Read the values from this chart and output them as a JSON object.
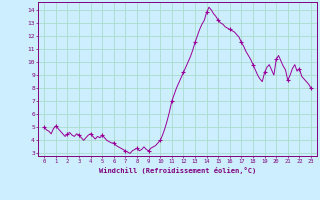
{
  "xlabel": "Windchill (Refroidissement éolien,°C)",
  "bg_color": "#cceeff",
  "grid_color": "#aaddcc",
  "line_color": "#990099",
  "marker_color": "#990099",
  "xlim": [
    -0.5,
    23.5
  ],
  "ylim": [
    2.8,
    14.6
  ],
  "yticks": [
    3,
    4,
    5,
    6,
    7,
    8,
    9,
    10,
    11,
    12,
    13,
    14
  ],
  "xticks": [
    0,
    1,
    2,
    3,
    4,
    5,
    6,
    7,
    8,
    9,
    10,
    11,
    12,
    13,
    14,
    15,
    16,
    17,
    18,
    19,
    20,
    21,
    22,
    23
  ],
  "x": [
    0,
    0.2,
    0.4,
    0.6,
    0.8,
    1.0,
    1.2,
    1.4,
    1.6,
    1.8,
    2.0,
    2.2,
    2.4,
    2.6,
    2.8,
    3.0,
    3.2,
    3.4,
    3.6,
    3.8,
    4.0,
    4.2,
    4.4,
    4.6,
    4.8,
    5.0,
    5.2,
    5.4,
    5.6,
    5.8,
    6.0,
    6.2,
    6.4,
    6.6,
    6.8,
    7.0,
    7.2,
    7.4,
    7.6,
    7.8,
    8.0,
    8.2,
    8.4,
    8.6,
    8.8,
    9.0,
    9.2,
    9.4,
    9.6,
    9.8,
    10.0,
    10.2,
    10.4,
    10.6,
    10.8,
    11.0,
    11.2,
    11.4,
    11.6,
    11.8,
    12.0,
    12.2,
    12.4,
    12.6,
    12.8,
    13.0,
    13.2,
    13.4,
    13.6,
    13.8,
    14.0,
    14.2,
    14.4,
    14.6,
    14.8,
    15.0,
    15.2,
    15.4,
    15.6,
    15.8,
    16.0,
    16.2,
    16.4,
    16.6,
    16.8,
    17.0,
    17.2,
    17.4,
    17.6,
    17.8,
    18.0,
    18.2,
    18.4,
    18.6,
    18.8,
    19.0,
    19.2,
    19.4,
    19.6,
    19.8,
    20.0,
    20.2,
    20.4,
    20.6,
    20.8,
    21.0,
    21.2,
    21.4,
    21.6,
    21.8,
    22.0,
    22.2,
    22.4,
    22.6,
    22.8,
    23.0
  ],
  "y": [
    5.0,
    4.8,
    4.7,
    4.5,
    4.9,
    5.1,
    4.9,
    4.7,
    4.5,
    4.3,
    4.5,
    4.6,
    4.4,
    4.3,
    4.5,
    4.4,
    4.2,
    4.0,
    4.2,
    4.4,
    4.5,
    4.3,
    4.1,
    4.3,
    4.2,
    4.4,
    4.2,
    4.0,
    3.9,
    3.8,
    3.8,
    3.6,
    3.5,
    3.4,
    3.3,
    3.2,
    3.1,
    3.0,
    3.2,
    3.3,
    3.4,
    3.2,
    3.3,
    3.5,
    3.3,
    3.2,
    3.4,
    3.5,
    3.6,
    3.8,
    4.0,
    4.4,
    4.9,
    5.5,
    6.2,
    7.0,
    7.5,
    8.0,
    8.4,
    8.8,
    9.2,
    9.6,
    10.0,
    10.4,
    10.9,
    11.5,
    12.0,
    12.5,
    12.9,
    13.2,
    13.8,
    14.2,
    14.0,
    13.7,
    13.5,
    13.2,
    13.0,
    12.9,
    12.7,
    12.6,
    12.5,
    12.4,
    12.3,
    12.1,
    11.9,
    11.5,
    11.2,
    10.8,
    10.5,
    10.2,
    9.8,
    9.4,
    9.0,
    8.7,
    8.5,
    9.2,
    9.6,
    9.8,
    9.4,
    9.0,
    10.2,
    10.5,
    10.1,
    9.7,
    9.4,
    8.6,
    9.0,
    9.5,
    9.8,
    9.3,
    9.5,
    8.9,
    8.7,
    8.5,
    8.3,
    8.0
  ],
  "marker_x": [
    0,
    1,
    2,
    3,
    4,
    5,
    6,
    7,
    8,
    9,
    10,
    11,
    12,
    13,
    14,
    15,
    16,
    17,
    18,
    19,
    20,
    21,
    22,
    23
  ],
  "marker_y": [
    5.0,
    5.1,
    4.5,
    4.4,
    4.5,
    4.4,
    3.8,
    3.2,
    3.4,
    3.2,
    4.0,
    7.0,
    9.2,
    11.5,
    13.8,
    13.2,
    12.5,
    11.5,
    9.8,
    9.2,
    10.2,
    8.6,
    9.5,
    8.0
  ]
}
